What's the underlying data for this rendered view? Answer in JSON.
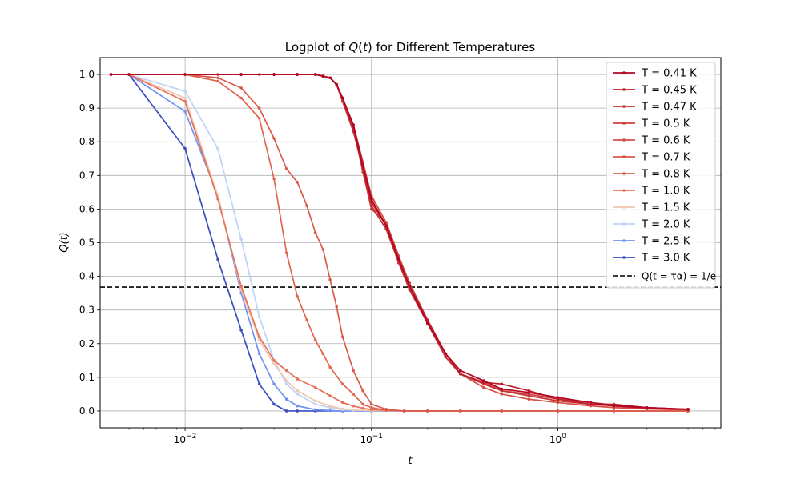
{
  "chart_data": {
    "type": "line",
    "title": "Logplot of Q(t) for Different Temperatures",
    "xlabel": "t",
    "ylabel": "Q(t)",
    "x_scale": "log",
    "xlim": [
      0.0035,
      7.5
    ],
    "ylim": [
      -0.05,
      1.05
    ],
    "grid": true,
    "legend_position": "top-right",
    "x_ticks": [
      {
        "value": 0.01,
        "base": "10",
        "exp": "−2"
      },
      {
        "value": 0.1,
        "base": "10",
        "exp": "−1"
      },
      {
        "value": 1,
        "base": "10",
        "exp": "0"
      }
    ],
    "y_ticks": [
      0.0,
      0.1,
      0.2,
      0.3,
      0.4,
      0.5,
      0.6,
      0.7,
      0.8,
      0.9,
      1.0
    ],
    "y_tick_labels": [
      "0.0",
      "0.1",
      "0.2",
      "0.3",
      "0.4",
      "0.5",
      "0.6",
      "0.7",
      "0.8",
      "0.9",
      "1.0"
    ],
    "reference_line": {
      "y": 0.3679,
      "style": "dashed",
      "color": "#000000",
      "label": "Q(t = τα) = 1/e"
    },
    "series": [
      {
        "name": "T = 0.41 K",
        "color": "#b40426",
        "points": [
          [
            0.004,
            1
          ],
          [
            0.005,
            1
          ],
          [
            0.01,
            1
          ],
          [
            0.02,
            1
          ],
          [
            0.03,
            1
          ],
          [
            0.04,
            1
          ],
          [
            0.05,
            1
          ],
          [
            0.055,
            0.995
          ],
          [
            0.06,
            0.99
          ],
          [
            0.065,
            0.97
          ],
          [
            0.07,
            0.93
          ],
          [
            0.08,
            0.85
          ],
          [
            0.09,
            0.73
          ],
          [
            0.1,
            0.63
          ],
          [
            0.12,
            0.55
          ],
          [
            0.14,
            0.45
          ],
          [
            0.16,
            0.37
          ],
          [
            0.2,
            0.26
          ],
          [
            0.25,
            0.17
          ],
          [
            0.3,
            0.12
          ],
          [
            0.4,
            0.09
          ],
          [
            0.5,
            0.065
          ],
          [
            0.7,
            0.055
          ],
          [
            1,
            0.04
          ],
          [
            1.5,
            0.025
          ],
          [
            2,
            0.015
          ],
          [
            3,
            0.01
          ],
          [
            5,
            0.005
          ]
        ]
      },
      {
        "name": "T = 0.45 K",
        "color": "#be1e2d",
        "points": [
          [
            0.004,
            1
          ],
          [
            0.005,
            1
          ],
          [
            0.01,
            1
          ],
          [
            0.02,
            1
          ],
          [
            0.03,
            1
          ],
          [
            0.04,
            1
          ],
          [
            0.05,
            1
          ],
          [
            0.055,
            0.995
          ],
          [
            0.06,
            0.99
          ],
          [
            0.065,
            0.97
          ],
          [
            0.07,
            0.93
          ],
          [
            0.08,
            0.84
          ],
          [
            0.09,
            0.72
          ],
          [
            0.1,
            0.62
          ],
          [
            0.12,
            0.55
          ],
          [
            0.14,
            0.45
          ],
          [
            0.16,
            0.37
          ],
          [
            0.2,
            0.27
          ],
          [
            0.25,
            0.17
          ],
          [
            0.3,
            0.11
          ],
          [
            0.4,
            0.085
          ],
          [
            0.5,
            0.08
          ],
          [
            0.7,
            0.06
          ],
          [
            1,
            0.035
          ],
          [
            1.5,
            0.02
          ],
          [
            2,
            0.02
          ],
          [
            3,
            0.01
          ],
          [
            5,
            0.005
          ]
        ]
      },
      {
        "name": "T = 0.47 K",
        "color": "#c53334",
        "points": [
          [
            0.004,
            1
          ],
          [
            0.005,
            1
          ],
          [
            0.01,
            1
          ],
          [
            0.02,
            1
          ],
          [
            0.03,
            1
          ],
          [
            0.04,
            1
          ],
          [
            0.05,
            1
          ],
          [
            0.055,
            0.995
          ],
          [
            0.06,
            0.99
          ],
          [
            0.065,
            0.97
          ],
          [
            0.07,
            0.92
          ],
          [
            0.08,
            0.83
          ],
          [
            0.09,
            0.72
          ],
          [
            0.1,
            0.61
          ],
          [
            0.12,
            0.54
          ],
          [
            0.14,
            0.44
          ],
          [
            0.16,
            0.36
          ],
          [
            0.2,
            0.26
          ],
          [
            0.25,
            0.16
          ],
          [
            0.3,
            0.11
          ],
          [
            0.4,
            0.08
          ],
          [
            0.5,
            0.06
          ],
          [
            0.7,
            0.045
          ],
          [
            1,
            0.03
          ],
          [
            1.5,
            0.02
          ],
          [
            2,
            0.015
          ],
          [
            3,
            0.008
          ],
          [
            5,
            0.004
          ]
        ]
      },
      {
        "name": "T = 0.5 K",
        "color": "#cc403a",
        "points": [
          [
            0.004,
            1
          ],
          [
            0.005,
            1
          ],
          [
            0.01,
            1
          ],
          [
            0.02,
            1
          ],
          [
            0.03,
            1
          ],
          [
            0.04,
            1
          ],
          [
            0.05,
            1
          ],
          [
            0.055,
            0.995
          ],
          [
            0.06,
            0.99
          ],
          [
            0.065,
            0.97
          ],
          [
            0.07,
            0.92
          ],
          [
            0.08,
            0.84
          ],
          [
            0.09,
            0.71
          ],
          [
            0.1,
            0.6
          ],
          [
            0.12,
            0.56
          ],
          [
            0.14,
            0.46
          ],
          [
            0.16,
            0.38
          ],
          [
            0.2,
            0.27
          ],
          [
            0.25,
            0.17
          ],
          [
            0.3,
            0.11
          ],
          [
            0.4,
            0.085
          ],
          [
            0.5,
            0.06
          ],
          [
            0.7,
            0.05
          ],
          [
            1,
            0.035
          ],
          [
            1.5,
            0.025
          ],
          [
            2,
            0.018
          ],
          [
            3,
            0.01
          ],
          [
            5,
            0.004
          ]
        ]
      },
      {
        "name": "T = 0.6 K",
        "color": "#d44e41",
        "points": [
          [
            0.004,
            1
          ],
          [
            0.005,
            1
          ],
          [
            0.01,
            1
          ],
          [
            0.015,
            1
          ],
          [
            0.02,
            1
          ],
          [
            0.025,
            1
          ],
          [
            0.03,
            1
          ],
          [
            0.04,
            1
          ],
          [
            0.05,
            1
          ],
          [
            0.055,
            0.995
          ],
          [
            0.06,
            0.99
          ],
          [
            0.065,
            0.97
          ],
          [
            0.07,
            0.93
          ],
          [
            0.08,
            0.85
          ],
          [
            0.09,
            0.74
          ],
          [
            0.1,
            0.64
          ],
          [
            0.12,
            0.56
          ],
          [
            0.14,
            0.46
          ],
          [
            0.16,
            0.37
          ],
          [
            0.2,
            0.26
          ],
          [
            0.25,
            0.16
          ],
          [
            0.3,
            0.11
          ],
          [
            0.4,
            0.07
          ],
          [
            0.5,
            0.05
          ],
          [
            0.7,
            0.035
          ],
          [
            1,
            0.025
          ],
          [
            1.5,
            0.015
          ],
          [
            2,
            0.01
          ],
          [
            3,
            0.006
          ],
          [
            5,
            0.003
          ]
        ]
      },
      {
        "name": "T = 0.7 K",
        "color": "#da5a49",
        "points": [
          [
            0.004,
            1
          ],
          [
            0.005,
            1
          ],
          [
            0.01,
            1
          ],
          [
            0.015,
            0.99
          ],
          [
            0.02,
            0.96
          ],
          [
            0.025,
            0.9
          ],
          [
            0.03,
            0.81
          ],
          [
            0.035,
            0.72
          ],
          [
            0.04,
            0.68
          ],
          [
            0.045,
            0.61
          ],
          [
            0.05,
            0.53
          ],
          [
            0.055,
            0.48
          ],
          [
            0.06,
            0.39
          ],
          [
            0.065,
            0.31
          ],
          [
            0.07,
            0.22
          ],
          [
            0.08,
            0.12
          ],
          [
            0.09,
            0.06
          ],
          [
            0.1,
            0.02
          ],
          [
            0.12,
            0.005
          ],
          [
            0.15,
            0
          ],
          [
            0.2,
            0
          ],
          [
            0.3,
            0
          ],
          [
            0.5,
            0
          ],
          [
            1,
            0
          ],
          [
            2,
            0
          ],
          [
            5,
            0
          ]
        ]
      },
      {
        "name": "T = 0.8 K",
        "color": "#e0654f",
        "points": [
          [
            0.004,
            1
          ],
          [
            0.005,
            1
          ],
          [
            0.01,
            1
          ],
          [
            0.015,
            0.98
          ],
          [
            0.02,
            0.93
          ],
          [
            0.025,
            0.87
          ],
          [
            0.03,
            0.69
          ],
          [
            0.035,
            0.47
          ],
          [
            0.04,
            0.34
          ],
          [
            0.045,
            0.27
          ],
          [
            0.05,
            0.21
          ],
          [
            0.055,
            0.17
          ],
          [
            0.06,
            0.13
          ],
          [
            0.07,
            0.08
          ],
          [
            0.08,
            0.05
          ],
          [
            0.09,
            0.02
          ],
          [
            0.1,
            0.01
          ],
          [
            0.12,
            0.002
          ],
          [
            0.15,
            0
          ],
          [
            0.2,
            0
          ],
          [
            0.3,
            0
          ],
          [
            0.5,
            0
          ],
          [
            1,
            0
          ],
          [
            2,
            0
          ],
          [
            5,
            0
          ]
        ]
      },
      {
        "name": "T = 1.0 K",
        "color": "#e67259",
        "points": [
          [
            0.004,
            1
          ],
          [
            0.005,
            1
          ],
          [
            0.01,
            0.92
          ],
          [
            0.015,
            0.63
          ],
          [
            0.02,
            0.37
          ],
          [
            0.025,
            0.22
          ],
          [
            0.03,
            0.15
          ],
          [
            0.035,
            0.12
          ],
          [
            0.04,
            0.095
          ],
          [
            0.05,
            0.07
          ],
          [
            0.06,
            0.045
          ],
          [
            0.07,
            0.025
          ],
          [
            0.08,
            0.015
          ],
          [
            0.09,
            0.008
          ],
          [
            0.1,
            0.004
          ],
          [
            0.12,
            0.002
          ],
          [
            0.15,
            0
          ],
          [
            0.2,
            0
          ],
          [
            0.3,
            0
          ],
          [
            0.5,
            0
          ],
          [
            1,
            0
          ],
          [
            2,
            0
          ],
          [
            5,
            0
          ]
        ]
      },
      {
        "name": "T = 1.5 K",
        "color": "#f1c7b1",
        "points": [
          [
            0.004,
            1
          ],
          [
            0.005,
            1
          ],
          [
            0.01,
            0.93
          ],
          [
            0.015,
            0.64
          ],
          [
            0.02,
            0.36
          ],
          [
            0.025,
            0.21
          ],
          [
            0.03,
            0.14
          ],
          [
            0.035,
            0.09
          ],
          [
            0.04,
            0.06
          ],
          [
            0.05,
            0.03
          ],
          [
            0.06,
            0.015
          ],
          [
            0.07,
            0.006
          ],
          [
            0.08,
            0.003
          ],
          [
            0.1,
            0.001
          ],
          [
            0.15,
            0
          ],
          [
            0.2,
            0
          ],
          [
            0.3,
            0
          ],
          [
            0.5,
            0
          ],
          [
            1,
            0
          ],
          [
            2,
            0
          ],
          [
            5,
            0
          ]
        ]
      },
      {
        "name": "T = 2.0 K",
        "color": "#bfd3f6",
        "points": [
          [
            0.004,
            1
          ],
          [
            0.005,
            1
          ],
          [
            0.01,
            0.95
          ],
          [
            0.015,
            0.78
          ],
          [
            0.02,
            0.51
          ],
          [
            0.025,
            0.28
          ],
          [
            0.03,
            0.15
          ],
          [
            0.035,
            0.08
          ],
          [
            0.04,
            0.05
          ],
          [
            0.05,
            0.02
          ],
          [
            0.06,
            0.01
          ],
          [
            0.07,
            0.004
          ],
          [
            0.08,
            0.002
          ],
          [
            0.1,
            0.001
          ],
          [
            0.15,
            0
          ],
          [
            0.2,
            0
          ],
          [
            0.3,
            0
          ],
          [
            0.5,
            0
          ],
          [
            1,
            0
          ],
          [
            2,
            0
          ],
          [
            5,
            0
          ]
        ]
      },
      {
        "name": "T = 2.5 K",
        "color": "#6f92f3",
        "points": [
          [
            0.004,
            1
          ],
          [
            0.005,
            1
          ],
          [
            0.01,
            0.89
          ],
          [
            0.015,
            0.64
          ],
          [
            0.02,
            0.35
          ],
          [
            0.025,
            0.17
          ],
          [
            0.03,
            0.08
          ],
          [
            0.035,
            0.035
          ],
          [
            0.04,
            0.015
          ],
          [
            0.05,
            0.004
          ],
          [
            0.06,
            0.001
          ],
          [
            0.07,
            0
          ],
          [
            0.1,
            0
          ],
          [
            0.15,
            0
          ],
          [
            0.2,
            0
          ],
          [
            0.3,
            0
          ],
          [
            0.5,
            0
          ],
          [
            1,
            0
          ],
          [
            2,
            0
          ],
          [
            5,
            0
          ]
        ]
      },
      {
        "name": "T = 3.0 K",
        "color": "#3b4cc0",
        "points": [
          [
            0.004,
            1
          ],
          [
            0.005,
            1
          ],
          [
            0.01,
            0.78
          ],
          [
            0.015,
            0.45
          ],
          [
            0.02,
            0.24
          ],
          [
            0.025,
            0.08
          ],
          [
            0.03,
            0.02
          ],
          [
            0.035,
            0
          ],
          [
            0.04,
            0
          ],
          [
            0.05,
            0
          ],
          [
            0.07,
            0
          ],
          [
            0.1,
            0
          ],
          [
            0.15,
            0
          ],
          [
            0.2,
            0
          ],
          [
            0.3,
            0
          ],
          [
            0.5,
            0
          ],
          [
            1,
            0
          ],
          [
            2,
            0
          ],
          [
            5,
            0
          ]
        ]
      }
    ]
  }
}
